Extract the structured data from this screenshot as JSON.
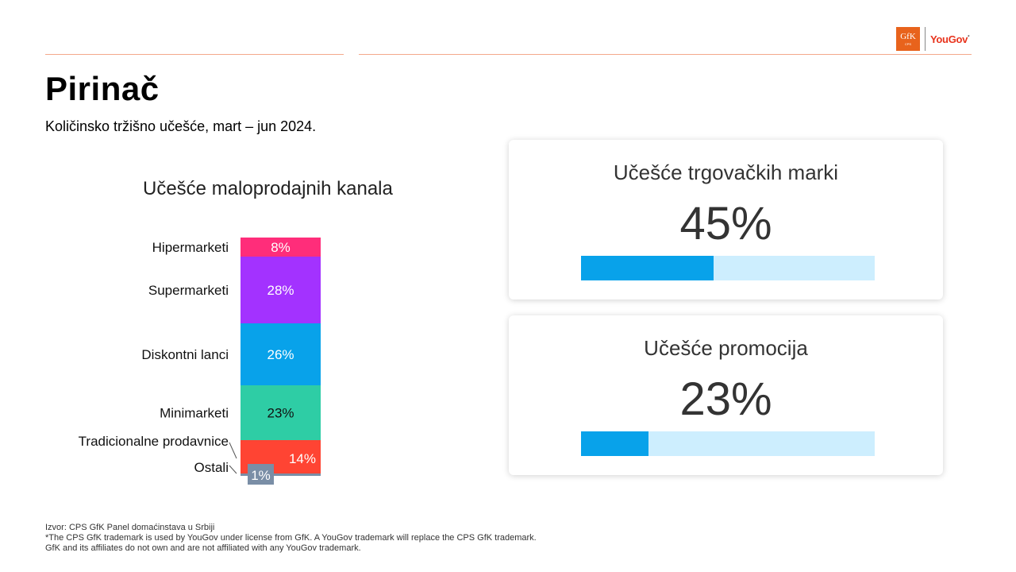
{
  "header": {
    "logo_gfk": "GfK",
    "logo_gfk_sub": "CPS",
    "logo_yougov": "YouGov",
    "logo_mark": "*"
  },
  "page": {
    "title": "Pirinač",
    "subtitle": "Količinsko tržišno učešće, mart – jun 2024."
  },
  "chart_data": {
    "type": "bar",
    "stacked": true,
    "title": "Učešće maloprodajnih kanala",
    "unit": "%",
    "categories": [
      "Hipermarketi",
      "Supermarketi",
      "Diskontni lanci",
      "Minimarketi",
      "Tradicionalne prodavnice",
      "Ostali"
    ],
    "values": [
      8,
      28,
      26,
      23,
      14,
      1
    ],
    "labels": [
      "8%",
      "28%",
      "26%",
      "23%",
      "14%",
      "1%"
    ],
    "colors": [
      "#ff2d7a",
      "#a332ff",
      "#08a2ea",
      "#2ecda5",
      "#ff4433",
      "#7a8ea6"
    ],
    "label_colors": [
      "#ffffff",
      "#ffffff",
      "#ffffff",
      "#111111",
      "#ffffff",
      "#ffffff"
    ]
  },
  "cards": [
    {
      "title": "Učešće trgovačkih marki",
      "value": "45%",
      "fraction": 0.45
    },
    {
      "title": "Učešće promocija",
      "value": "23%",
      "fraction": 0.23
    }
  ],
  "colors": {
    "bar_fill": "#08a2ea",
    "bar_track": "#cdeefe",
    "accent_rule": "#f4a98c"
  },
  "footer": {
    "line1": "Izvor: CPS GfK Panel domaćinstava u Srbiji",
    "line2": "*The CPS GfK trademark is used by YouGov under license from GfK. A YouGov trademark will replace the CPS GfK trademark.",
    "line3": "GfK and its affiliates do not own and are not affiliated with any YouGov trademark."
  }
}
